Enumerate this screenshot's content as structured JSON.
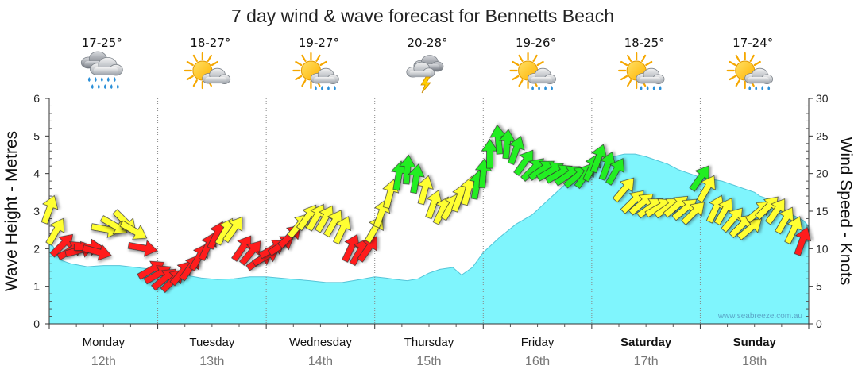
{
  "chart_data": {
    "type": "area",
    "title": "7 day wind & wave forecast for Bennetts Beach",
    "ylabel_left": "Wave Height - Metres",
    "ylabel_right": "Wind Speed - Knots",
    "ylim_left": [
      0,
      6
    ],
    "ylim_right": [
      0,
      30
    ],
    "yticks_left": [
      "0",
      "1",
      "2",
      "3",
      "4",
      "5",
      "6"
    ],
    "yticks_right": [
      "0",
      "5",
      "10",
      "15",
      "20",
      "25",
      "30"
    ],
    "watermark": "www.seabreeze.com.au",
    "days": [
      {
        "name": "Monday",
        "date": "12th",
        "temp": "17-25°",
        "icon": "rain-cloud-icon",
        "bold": false
      },
      {
        "name": "Tuesday",
        "date": "13th",
        "temp": "18-27°",
        "icon": "sun-cloud-icon",
        "bold": false
      },
      {
        "name": "Wednesday",
        "date": "14th",
        "temp": "19-27°",
        "icon": "sun-shower-icon",
        "bold": false
      },
      {
        "name": "Thursday",
        "date": "15th",
        "temp": "20-28°",
        "icon": "storm-icon",
        "bold": false
      },
      {
        "name": "Friday",
        "date": "16th",
        "temp": "19-26°",
        "icon": "sun-shower-icon",
        "bold": false
      },
      {
        "name": "Saturday",
        "date": "17th",
        "temp": "18-25°",
        "icon": "sun-shower-icon",
        "bold": true
      },
      {
        "name": "Sunday",
        "date": "18th",
        "temp": "17-24°",
        "icon": "sun-shower-icon",
        "bold": true
      }
    ],
    "colors": {
      "low": "#ff1a1a",
      "mid": "#ffff33",
      "high": "#22ee22",
      "swell": "#7ff5fd",
      "swell_line": "#55c5d8"
    },
    "wave_height_series": {
      "name": "Wave height (m)",
      "day": [
        0,
        0.05,
        0.1,
        0.2,
        0.35,
        0.5,
        0.65,
        0.8,
        0.95,
        1.1,
        1.25,
        1.4,
        1.55,
        1.7,
        1.85,
        2.0,
        2.2,
        2.4,
        2.55,
        2.7,
        2.8,
        2.9,
        3.0,
        3.1,
        3.2,
        3.3,
        3.4,
        3.5,
        3.6,
        3.72,
        3.8,
        3.9,
        4.0,
        4.15,
        4.3,
        4.45,
        4.6,
        4.75,
        4.9,
        5.0,
        5.1,
        5.2,
        5.3,
        5.4,
        5.5,
        5.6,
        5.7,
        5.8,
        5.9,
        6.0,
        6.1,
        6.2,
        6.3,
        6.4,
        6.5,
        6.55,
        6.65,
        6.75,
        6.85,
        6.95,
        7.0
      ],
      "values": [
        2.2,
        2.0,
        1.7,
        1.6,
        1.52,
        1.55,
        1.55,
        1.5,
        1.45,
        1.35,
        1.3,
        1.22,
        1.18,
        1.2,
        1.25,
        1.25,
        1.2,
        1.15,
        1.1,
        1.1,
        1.15,
        1.2,
        1.25,
        1.22,
        1.18,
        1.15,
        1.2,
        1.35,
        1.45,
        1.5,
        1.3,
        1.5,
        1.9,
        2.3,
        2.65,
        2.9,
        3.3,
        3.7,
        4.0,
        4.2,
        4.35,
        4.45,
        4.52,
        4.52,
        4.45,
        4.35,
        4.25,
        4.1,
        4.0,
        3.9,
        3.85,
        3.8,
        3.7,
        3.6,
        3.5,
        3.4,
        3.3,
        3.1,
        2.9,
        2.75,
        2.6
      ]
    },
    "wind_series": {
      "name": "Wind speed (knots)",
      "day": [
        0.0,
        0.06,
        0.12,
        0.2,
        0.28,
        0.36,
        0.44,
        0.52,
        0.6,
        0.7,
        0.78,
        0.86,
        0.94,
        1.0,
        1.06,
        1.14,
        1.22,
        1.3,
        1.38,
        1.46,
        1.54,
        1.62,
        1.7,
        1.78,
        1.86,
        1.94,
        2.0,
        2.06,
        2.14,
        2.22,
        2.3,
        2.38,
        2.46,
        2.54,
        2.62,
        2.7,
        2.78,
        2.86,
        2.94,
        3.0,
        3.06,
        3.14,
        3.22,
        3.3,
        3.38,
        3.46,
        3.54,
        3.62,
        3.7,
        3.78,
        3.86,
        3.94,
        4.0,
        4.06,
        4.14,
        4.22,
        4.3,
        4.38,
        4.46,
        4.54,
        4.62,
        4.7,
        4.78,
        4.86,
        4.94,
        5.0,
        5.06,
        5.14,
        5.22,
        5.3,
        5.38,
        5.46,
        5.54,
        5.62,
        5.7,
        5.78,
        5.86,
        5.94,
        6.0,
        6.06,
        6.14,
        6.22,
        6.3,
        6.38,
        6.46,
        6.54,
        6.62,
        6.7,
        6.78,
        6.86,
        6.94
      ],
      "knots": [
        15.2,
        12.3,
        10.5,
        9.8,
        9.8,
        10.2,
        9.6,
        12.6,
        13.1,
        13.6,
        12.4,
        10.1,
        7.2,
        6.6,
        6.0,
        5.8,
        6.8,
        7.5,
        8.9,
        10.3,
        11.8,
        12.3,
        12.6,
        10.1,
        9.5,
        8.5,
        9.0,
        10.0,
        10.5,
        11.7,
        13.1,
        14.2,
        14.2,
        14.0,
        13.4,
        12.5,
        10.1,
        9.6,
        10.0,
        12.6,
        14.7,
        17.3,
        19.7,
        20.5,
        19.3,
        17.8,
        15.9,
        15.1,
        15.6,
        16.8,
        17.7,
        18.5,
        20.0,
        22.6,
        24.5,
        23.9,
        23.1,
        21.5,
        20.6,
        20.5,
        20.3,
        20.0,
        19.8,
        19.6,
        19.8,
        20.8,
        22.0,
        21.0,
        20.3,
        17.9,
        16.3,
        16.0,
        15.5,
        15.5,
        15.5,
        15.7,
        15.3,
        14.8,
        19.4,
        18.0,
        15.3,
        15.0,
        13.9,
        13.1,
        12.7,
        15.0,
        15.5,
        15.0,
        13.8,
        12.5,
        11.0
      ],
      "direction_deg": [
        200,
        210,
        225,
        240,
        255,
        270,
        285,
        280,
        300,
        315,
        300,
        280,
        240,
        240,
        230,
        225,
        220,
        215,
        210,
        205,
        205,
        210,
        215,
        215,
        220,
        235,
        240,
        240,
        235,
        225,
        220,
        215,
        210,
        210,
        210,
        205,
        205,
        210,
        215,
        210,
        200,
        195,
        190,
        185,
        190,
        195,
        200,
        205,
        210,
        200,
        195,
        190,
        185,
        180,
        175,
        185,
        200,
        215,
        225,
        235,
        240,
        240,
        235,
        230,
        215,
        205,
        200,
        200,
        210,
        220,
        225,
        230,
        235,
        240,
        235,
        230,
        230,
        225,
        215,
        210,
        205,
        210,
        220,
        225,
        230,
        230,
        225,
        215,
        210,
        205,
        200
      ]
    }
  }
}
